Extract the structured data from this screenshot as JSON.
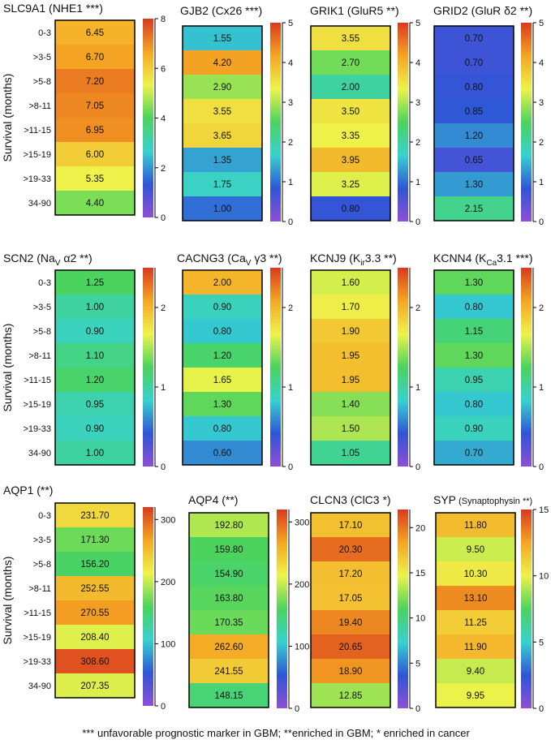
{
  "chart_data": {
    "type": "heatmap",
    "ylabel": "Survival (months)",
    "row_labels": [
      "0-3",
      ">3-5",
      ">5-8",
      ">8-11",
      ">11-15",
      ">15-19",
      ">19-33",
      "34-90"
    ],
    "colormap": [
      "#8e4fd6",
      "#2f55d6",
      "#37d2cf",
      "#4bd35d",
      "#eef34a",
      "#f5a623",
      "#d93a1e"
    ],
    "footnote": "*** unfavorable prognostic marker in GBM;  **enriched in GBM;  * enriched in cancer",
    "panels": [
      {
        "name": "SLC9A1",
        "title_main": "SLC9A1 (NHE1 ***)",
        "title_sub": "",
        "title_tail": "",
        "vmin": 0,
        "vmax": 8,
        "ticks": [
          0,
          2,
          4,
          6,
          8
        ],
        "values": [
          6.45,
          6.7,
          7.2,
          7.05,
          6.95,
          6.0,
          5.35,
          4.4
        ],
        "labels": [
          "6.45",
          "6.70",
          "7.20",
          "7.05",
          "6.95",
          "6.00",
          "5.35",
          "4.40"
        ]
      },
      {
        "name": "GJB2",
        "title_main": "GJB2 (Cx26 ***)",
        "title_sub": "",
        "title_tail": "",
        "vmin": 0,
        "vmax": 5,
        "ticks": [
          0,
          1,
          2,
          3,
          4,
          5
        ],
        "values": [
          1.55,
          4.2,
          2.9,
          3.55,
          3.65,
          1.35,
          1.75,
          1.0
        ],
        "labels": [
          "1.55",
          "4.20",
          "2.90",
          "3.55",
          "3.65",
          "1.35",
          "1.75",
          "1.00"
        ]
      },
      {
        "name": "GRIK1",
        "title_main": "GRIK1 (GluR5 **)",
        "title_sub": "",
        "title_tail": "",
        "vmin": 0,
        "vmax": 5,
        "ticks": [
          0,
          1,
          2,
          3,
          4,
          5
        ],
        "values": [
          3.55,
          2.7,
          2.0,
          3.5,
          3.35,
          3.95,
          3.25,
          0.8
        ],
        "labels": [
          "3.55",
          "2.70",
          "2.00",
          "3.50",
          "3.35",
          "3.95",
          "3.25",
          "0.80"
        ]
      },
      {
        "name": "GRID2",
        "title_main": "GRID2 (GluR δ2 **)",
        "title_sub": "",
        "title_tail": "",
        "vmin": 0,
        "vmax": 5,
        "ticks": [
          0,
          1,
          2,
          3,
          4,
          5
        ],
        "values": [
          0.7,
          0.7,
          0.8,
          0.85,
          1.2,
          0.65,
          1.3,
          2.15
        ],
        "labels": [
          "0.70",
          "0.70",
          "0.80",
          "0.85",
          "1.20",
          "0.65",
          "1.30",
          "2.15"
        ]
      },
      {
        "name": "SCN2",
        "title_main": "SCN2 (Na",
        "title_sub": "V",
        "title_tail": " α2 **)",
        "vmin": 0,
        "vmax": 2.5,
        "ticks": [
          0,
          1,
          2
        ],
        "values": [
          1.25,
          1.0,
          0.9,
          1.1,
          1.2,
          0.95,
          0.9,
          1.0
        ],
        "labels": [
          "1.25",
          "1.00",
          "0.90",
          "1.10",
          "1.20",
          "0.95",
          "0.90",
          "1.00"
        ]
      },
      {
        "name": "CACNG3",
        "title_main": "CACNG3 (Ca",
        "title_sub": "V",
        "title_tail": " γ3 **)",
        "vmin": 0,
        "vmax": 2.5,
        "ticks": [
          0,
          1,
          2
        ],
        "values": [
          2.0,
          0.9,
          0.8,
          1.2,
          1.65,
          1.3,
          0.8,
          0.6
        ],
        "labels": [
          "2.00",
          "0.90",
          "0.80",
          "1.20",
          "1.65",
          "1.30",
          "0.80",
          "0.60"
        ]
      },
      {
        "name": "KCNJ9",
        "title_main": "KCNJ9 (K",
        "title_sub": "ir",
        "title_tail": "3.3 **)",
        "vmin": 0,
        "vmax": 2.5,
        "ticks": [
          0,
          1,
          2
        ],
        "values": [
          1.6,
          1.7,
          1.9,
          1.95,
          1.95,
          1.4,
          1.5,
          1.05
        ],
        "labels": [
          "1.60",
          "1.70",
          "1.90",
          "1.95",
          "1.95",
          "1.40",
          "1.50",
          "1.05"
        ]
      },
      {
        "name": "KCNN4",
        "title_main": "KCNN4 (K",
        "title_sub": "Ca",
        "title_tail": "3.1 ***)",
        "vmin": 0,
        "vmax": 2.5,
        "ticks": [
          0,
          1,
          2
        ],
        "values": [
          1.3,
          0.8,
          1.15,
          1.3,
          0.95,
          0.8,
          0.9,
          0.7
        ],
        "labels": [
          "1.30",
          "0.80",
          "1.15",
          "1.30",
          "0.95",
          "0.80",
          "0.90",
          "0.70"
        ]
      },
      {
        "name": "AQP1",
        "title_main": "AQP1 (**)",
        "title_sub": "",
        "title_tail": "",
        "vmin": 0,
        "vmax": 320,
        "ticks": [
          0,
          100,
          200,
          300
        ],
        "values": [
          231.7,
          171.3,
          156.2,
          252.55,
          270.55,
          208.4,
          308.6,
          207.35
        ],
        "labels": [
          "231.70",
          "171.30",
          "156.20",
          "252.55",
          "270.55",
          "208.40",
          "308.60",
          "207.35"
        ]
      },
      {
        "name": "AQP4",
        "title_main": "AQP4 (**)",
        "title_sub": "",
        "title_tail": "",
        "vmin": 0,
        "vmax": 320,
        "ticks": [
          0,
          100,
          200,
          300
        ],
        "values": [
          192.8,
          159.8,
          154.9,
          163.8,
          170.35,
          262.6,
          241.55,
          148.15
        ],
        "labels": [
          "192.80",
          "159.80",
          "154.90",
          "163.80",
          "170.35",
          "262.60",
          "241.55",
          "148.15"
        ]
      },
      {
        "name": "CLCN3",
        "title_main": "CLCN3 (ClC3 *)",
        "title_sub": "",
        "title_tail": "",
        "vmin": 0,
        "vmax": 22,
        "ticks": [
          0,
          5,
          10,
          15,
          20
        ],
        "values": [
          17.1,
          20.3,
          17.2,
          17.05,
          19.4,
          20.65,
          18.9,
          12.85
        ],
        "labels": [
          "17.10",
          "20.30",
          "17.20",
          "17.05",
          "19.40",
          "20.65",
          "18.90",
          "12.85"
        ]
      },
      {
        "name": "SYP",
        "title_main": "SYP",
        "title_sub": "",
        "title_tail": " (Synaptophysin **)",
        "vmin": 0,
        "vmax": 15,
        "ticks": [
          0,
          5,
          10,
          15
        ],
        "values": [
          11.8,
          9.5,
          10.3,
          13.1,
          11.25,
          11.9,
          9.4,
          9.95
        ],
        "labels": [
          "11.80",
          "9.50",
          "10.30",
          "13.10",
          "11.25",
          "11.90",
          "9.40",
          "9.95"
        ]
      }
    ]
  }
}
